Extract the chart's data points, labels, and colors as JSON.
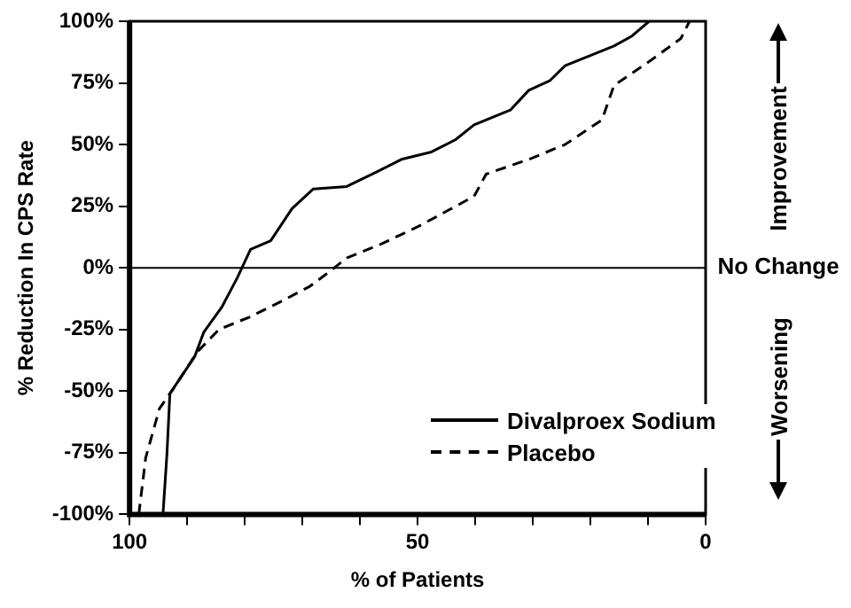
{
  "chart_data": {
    "type": "line",
    "xlabel": "% of Patients",
    "ylabel": "% Reduction In CPS Rate",
    "xlim": [
      100,
      0
    ],
    "xticks": [
      100,
      {
        "value": 90,
        "label": null
      },
      {
        "value": 80,
        "label": null
      },
      {
        "value": 70,
        "label": null
      },
      {
        "value": 60,
        "label": null
      },
      50,
      {
        "value": 40,
        "label": null
      },
      {
        "value": 30,
        "label": null
      },
      {
        "value": 20,
        "label": null
      },
      {
        "value": 10,
        "label": null
      },
      0
    ],
    "ylim": [
      -100,
      100
    ],
    "yticks": [
      {
        "value": -100,
        "label": "-100%"
      },
      {
        "value": -75,
        "label": "-75%"
      },
      {
        "value": -50,
        "label": "-50%"
      },
      {
        "value": -25,
        "label": "-25%"
      },
      {
        "value": 0,
        "label": "0%"
      },
      {
        "value": 25,
        "label": "25%"
      },
      {
        "value": 50,
        "label": "50%"
      },
      {
        "value": 75,
        "label": "75%"
      },
      {
        "value": 100,
        "label": "100%"
      }
    ],
    "grid": false,
    "legend": "bottom right",
    "marker": "none",
    "ref_lines": [
      {
        "axis": "y",
        "value": 0,
        "label": "No Change",
        "color": "#000000"
      }
    ],
    "annotations": [
      "Improvement",
      "Worsening"
    ],
    "series": [
      {
        "name": "Divalproex Sodium",
        "color": "#000000",
        "line_style": "solid",
        "x": [
          94.2,
          93.5,
          93,
          88.7,
          87.1,
          84,
          81.3,
          79,
          75.5,
          71.8,
          68.1,
          62.3,
          57,
          52.8,
          47.6,
          43.4,
          40.2,
          33.9,
          30.7,
          27,
          24.4,
          15.9,
          12.8,
          9.8
        ],
        "values": [
          -100,
          -75,
          -51,
          -36,
          -26,
          -16,
          -4,
          7.5,
          11,
          24,
          32,
          33,
          39,
          44,
          47,
          52,
          58,
          64,
          72,
          76,
          82,
          90,
          94,
          100
        ]
      },
      {
        "name": "Placebo",
        "color": "#000000",
        "line_style": "dashed",
        "x": [
          98.4,
          97.2,
          94.8,
          92.4,
          88.2,
          84.5,
          79.2,
          74,
          68.7,
          65,
          62.3,
          56,
          49.7,
          40.2,
          38.1,
          30.7,
          24.4,
          18,
          15.9,
          9.6,
          4.3,
          2.8
        ],
        "values": [
          -100,
          -77,
          -57,
          -49,
          -34,
          -25,
          -20,
          -14,
          -7.5,
          -1,
          4,
          10,
          17,
          29,
          38,
          44,
          50,
          60,
          74,
          84,
          93,
          100
        ]
      }
    ]
  }
}
